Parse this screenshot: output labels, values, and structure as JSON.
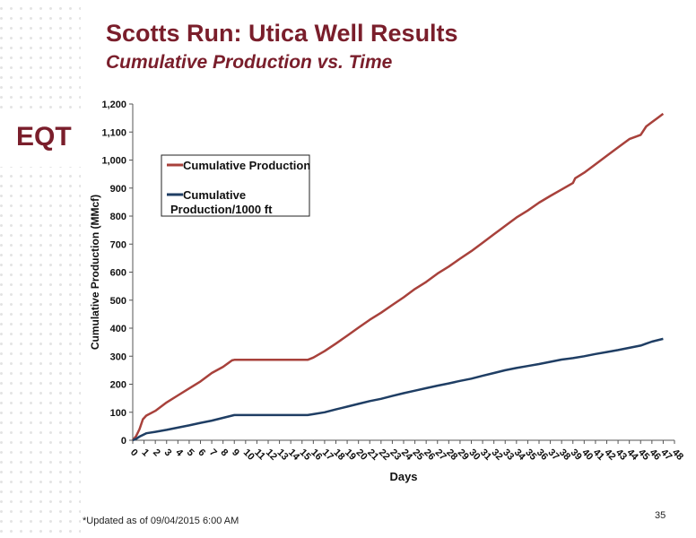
{
  "header": {
    "title": "Scotts Run: Utica Well Results",
    "subtitle": "Cumulative Production vs. Time"
  },
  "logo": {
    "text": "EQT"
  },
  "footer": {
    "note": "*Updated as of 09/04/2015 6:00 AM",
    "page_number": "35"
  },
  "colors": {
    "brand": "#7a1e2b",
    "series_total": "#a8413b",
    "series_per_ft": "#1f3e64"
  },
  "chart_data": {
    "type": "line",
    "xlabel": "Days",
    "ylabel": "Cumulative Production (MMcf)",
    "xlim": [
      0,
      48
    ],
    "ylim": [
      0,
      1200
    ],
    "x_ticks": [
      0,
      1,
      2,
      3,
      4,
      5,
      6,
      7,
      8,
      9,
      10,
      11,
      12,
      13,
      14,
      15,
      16,
      17,
      18,
      19,
      20,
      21,
      22,
      23,
      24,
      25,
      26,
      27,
      28,
      29,
      30,
      31,
      32,
      33,
      34,
      35,
      36,
      37,
      38,
      39,
      40,
      41,
      42,
      43,
      44,
      45,
      46,
      47,
      48
    ],
    "y_ticks": [
      {
        "value": 0,
        "label": "0"
      },
      {
        "value": 100,
        "label": "100"
      },
      {
        "value": 200,
        "label": "200"
      },
      {
        "value": 300,
        "label": "300"
      },
      {
        "value": 400,
        "label": "400"
      },
      {
        "value": 500,
        "label": "500"
      },
      {
        "value": 600,
        "label": "600"
      },
      {
        "value": 700,
        "label": "700"
      },
      {
        "value": 800,
        "label": "800"
      },
      {
        "value": 900,
        "label": "900"
      },
      {
        "value": 1000,
        "label": "1,000"
      },
      {
        "value": 1100,
        "label": "1,100"
      },
      {
        "value": 1200,
        "label": "1,200"
      }
    ],
    "legend_position": "top-left",
    "series": [
      {
        "name": "Cumulative Production",
        "color": "#a8413b",
        "points": [
          [
            0,
            0
          ],
          [
            0.3,
            15
          ],
          [
            0.6,
            40
          ],
          [
            0.9,
            75
          ],
          [
            1.2,
            88
          ],
          [
            2,
            105
          ],
          [
            3,
            135
          ],
          [
            4,
            160
          ],
          [
            5,
            185
          ],
          [
            6,
            210
          ],
          [
            7,
            240
          ],
          [
            8,
            262
          ],
          [
            8.8,
            285
          ],
          [
            9,
            287
          ],
          [
            15.5,
            287
          ],
          [
            16,
            295
          ],
          [
            17,
            318
          ],
          [
            18,
            345
          ],
          [
            19,
            373
          ],
          [
            20,
            402
          ],
          [
            21,
            430
          ],
          [
            22,
            455
          ],
          [
            23,
            483
          ],
          [
            24,
            510
          ],
          [
            25,
            540
          ],
          [
            26,
            565
          ],
          [
            27,
            595
          ],
          [
            28,
            620
          ],
          [
            29,
            648
          ],
          [
            30,
            675
          ],
          [
            31,
            705
          ],
          [
            32,
            735
          ],
          [
            33,
            765
          ],
          [
            34,
            795
          ],
          [
            35,
            820
          ],
          [
            36,
            848
          ],
          [
            37,
            872
          ],
          [
            38,
            895
          ],
          [
            39,
            918
          ],
          [
            39.2,
            935
          ],
          [
            40,
            955
          ],
          [
            41,
            985
          ],
          [
            42,
            1015
          ],
          [
            43,
            1045
          ],
          [
            44,
            1075
          ],
          [
            45,
            1090
          ],
          [
            45.5,
            1120
          ],
          [
            46,
            1135
          ],
          [
            46.5,
            1150
          ],
          [
            47,
            1165
          ]
        ]
      },
      {
        "name": "Cumulative Production/1000 ft",
        "color": "#1f3e64",
        "points": [
          [
            0,
            0
          ],
          [
            0.3,
            5
          ],
          [
            0.6,
            13
          ],
          [
            1.2,
            25
          ],
          [
            2,
            30
          ],
          [
            3,
            37
          ],
          [
            4,
            45
          ],
          [
            5,
            53
          ],
          [
            6,
            62
          ],
          [
            7,
            70
          ],
          [
            8,
            80
          ],
          [
            9,
            90
          ],
          [
            15.5,
            90
          ],
          [
            16,
            93
          ],
          [
            17,
            100
          ],
          [
            18,
            110
          ],
          [
            19,
            120
          ],
          [
            20,
            130
          ],
          [
            21,
            140
          ],
          [
            22,
            148
          ],
          [
            23,
            158
          ],
          [
            24,
            168
          ],
          [
            25,
            177
          ],
          [
            26,
            186
          ],
          [
            27,
            195
          ],
          [
            28,
            203
          ],
          [
            29,
            212
          ],
          [
            30,
            220
          ],
          [
            31,
            230
          ],
          [
            32,
            240
          ],
          [
            33,
            250
          ],
          [
            34,
            258
          ],
          [
            35,
            265
          ],
          [
            36,
            272
          ],
          [
            37,
            280
          ],
          [
            38,
            288
          ],
          [
            39,
            293
          ],
          [
            40,
            300
          ],
          [
            41,
            308
          ],
          [
            42,
            315
          ],
          [
            43,
            322
          ],
          [
            44,
            330
          ],
          [
            45,
            338
          ],
          [
            45.5,
            345
          ],
          [
            46,
            352
          ],
          [
            47,
            362
          ]
        ]
      }
    ]
  }
}
